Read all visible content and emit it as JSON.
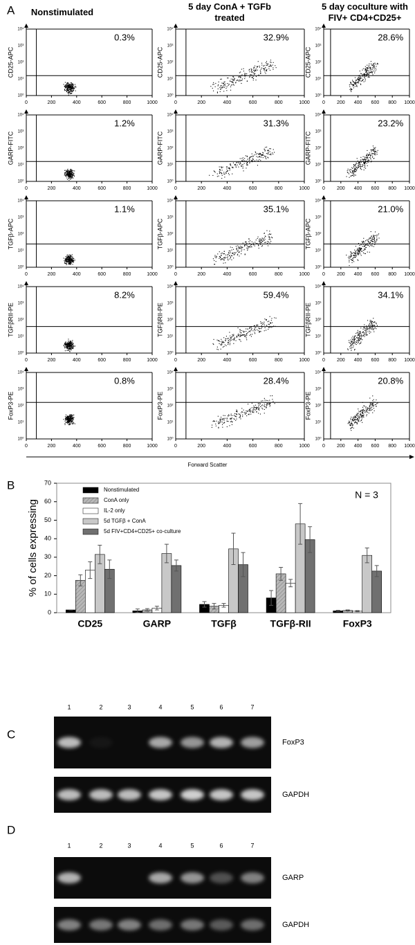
{
  "panel_labels": [
    "A",
    "B",
    "C",
    "D"
  ],
  "flow": {
    "columns": [
      "Nonstimulated",
      "5 day ConA + TGFb treated",
      "5 day coculture with FIV+ CD4+CD25+"
    ],
    "rows": [
      {
        "ylabel": "CD25-APC",
        "percents": [
          "0.3%",
          "32.9%",
          "28.6%"
        ]
      },
      {
        "ylabel": "GARP-FITC",
        "percents": [
          "1.2%",
          "31.3%",
          "23.2%"
        ]
      },
      {
        "ylabel": "TGFβ-APC",
        "percents": [
          "1.1%",
          "35.1%",
          "21.0%"
        ]
      },
      {
        "ylabel": "TGFβRII-PE",
        "percents": [
          "8.2%",
          "59.4%",
          "34.1%"
        ]
      },
      {
        "ylabel": "FoxP3-PE",
        "percents": [
          "0.8%",
          "28.4%",
          "20.8%"
        ]
      }
    ],
    "xticks": [
      0,
      200,
      400,
      600,
      800,
      1000
    ],
    "yticks": [
      "10⁰",
      "10¹",
      "10²",
      "10³",
      "10⁴"
    ],
    "xlabel": "Forward Scatter"
  },
  "chart_data": {
    "type": "bar",
    "ylabel": "% of cells expressing",
    "annotation": "N = 3",
    "categories": [
      "CD25",
      "GARP",
      "TGFβ",
      "TGFβ-RII",
      "FoxP3"
    ],
    "series": [
      {
        "name": "Nonstimulated",
        "color": "#000000",
        "values": [
          1.5,
          1,
          4.5,
          8,
          1
        ],
        "errors": [
          0,
          1,
          1.5,
          4,
          0.3
        ]
      },
      {
        "name": "ConA only",
        "color": "#a8a8a8",
        "values": [
          17.5,
          1.5,
          3.5,
          21,
          1.2
        ],
        "errors": [
          3,
          0.7,
          1.5,
          3.5,
          0.3
        ]
      },
      {
        "name": "IL-2 only",
        "color": "#ffffff",
        "values": [
          23,
          2.5,
          4,
          16,
          0.8
        ],
        "errors": [
          4.5,
          1,
          1,
          2,
          0.3
        ]
      },
      {
        "name": "5d TGFβ + ConA",
        "color": "#c8c8c8",
        "values": [
          31.5,
          32,
          34.5,
          48,
          31
        ],
        "errors": [
          5,
          5,
          8.5,
          11,
          4
        ]
      },
      {
        "name": "5d FIV+CD4+CD25+ co-culture",
        "color": "#707070",
        "values": [
          23.5,
          25.5,
          26,
          39.5,
          22.5
        ],
        "errors": [
          5,
          3,
          6.5,
          7,
          3
        ]
      }
    ],
    "ylim": [
      0,
      70
    ],
    "yticks": [
      0,
      10,
      20,
      30,
      40,
      50,
      60,
      70
    ]
  },
  "gels": [
    {
      "lanes": [
        "1",
        "2",
        "3",
        "4",
        "5",
        "6",
        "7"
      ],
      "blots": [
        {
          "label": "FoxP3"
        },
        {
          "label": "GAPDH"
        }
      ]
    },
    {
      "lanes": [
        "1",
        "2",
        "3",
        "4",
        "5",
        "6",
        "7"
      ],
      "blots": [
        {
          "label": "GARP"
        },
        {
          "label": "GAPDH"
        }
      ]
    }
  ]
}
